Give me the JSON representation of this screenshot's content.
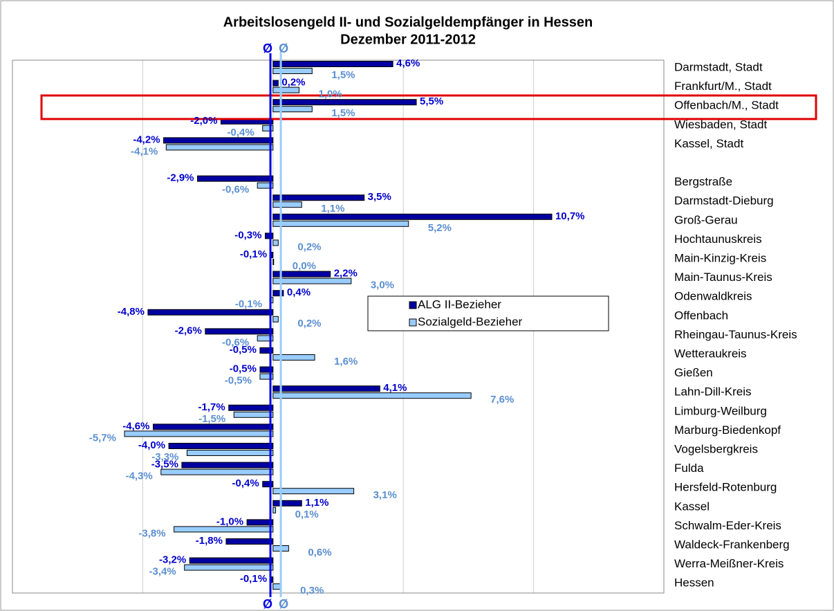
{
  "chart_data": {
    "type": "hbar",
    "title": "Arbeitslosengeld II- und Sozialgeldempfänger in Hessen",
    "subtitle": "Dezember 2011-2012",
    "avg_symbol": "Ø",
    "categories": [
      "Darmstadt, Stadt",
      "Frankfurt/M., Stadt",
      "Offenbach/M., Stadt",
      "Wiesbaden, Stadt",
      "Kassel, Stadt",
      null,
      "Bergstraße",
      "Darmstadt-Dieburg",
      "Groß-Gerau",
      "Hochtaunuskreis",
      "Main-Kinzig-Kreis",
      "Main-Taunus-Kreis",
      "Odenwaldkreis",
      "Offenbach",
      "Rheingau-Taunus-Kreis",
      "Wetteraukreis",
      "Gießen",
      "Lahn-Dill-Kreis",
      "Limburg-Weilburg",
      "Marburg-Biedenkopf",
      "Vogelsbergkreis",
      "Fulda",
      "Hersfeld-Rotenburg",
      "Kassel",
      "Schwalm-Eder-Kreis",
      "Waldeck-Frankenberg",
      "Werra-Meißner-Kreis",
      "Hessen"
    ],
    "series": [
      {
        "name": "ALG II-Bezieher",
        "color": "#0000a0",
        "label_color": "#0000cc",
        "values": [
          4.6,
          0.2,
          5.5,
          -2.0,
          -4.2,
          null,
          -2.9,
          3.5,
          10.7,
          -0.3,
          -0.1,
          2.2,
          0.4,
          -4.8,
          -2.6,
          -0.5,
          -0.5,
          4.1,
          -1.7,
          -4.6,
          -4.0,
          -3.5,
          -0.4,
          1.1,
          -1.0,
          -1.8,
          -3.2,
          -0.1
        ],
        "value_labels": [
          "4,6%",
          "0,2%",
          "5,5%",
          "-2,0%",
          "-4,2%",
          null,
          "-2,9%",
          "3,5%",
          "10,7%",
          "-0,3%",
          "-0,1%",
          "2,2%",
          "0,4%",
          "-4,8%",
          "-2,6%",
          "-0,5%",
          "-0,5%",
          "4,1%",
          "-1,7%",
          "-4,6%",
          "-4,0%",
          "-3,5%",
          "-0,4%",
          "1,1%",
          "-1,0%",
          "-1,8%",
          "-3,2%",
          "-0,1%"
        ]
      },
      {
        "name": "Sozialgeld-Bezieher",
        "color": "#99ccff",
        "label_color": "#5b8fd0",
        "values": [
          1.5,
          1.0,
          1.5,
          -0.4,
          -4.1,
          null,
          -0.6,
          1.1,
          5.2,
          0.2,
          0.0,
          3.0,
          -0.1,
          0.2,
          -0.6,
          1.6,
          -0.5,
          7.6,
          -1.5,
          -5.7,
          -3.3,
          -4.3,
          3.1,
          0.1,
          -3.8,
          0.6,
          -3.4,
          0.3
        ],
        "value_labels": [
          "1,5%",
          "1,0%",
          "1,5%",
          "-0,4%",
          "-4,1%",
          null,
          "-0,6%",
          "1,1%",
          "5,2%",
          "0,2%",
          "0,0%",
          "3,0%",
          "-0,1%",
          "0,2%",
          "-0,6%",
          "1,6%",
          "-0,5%",
          "7,6%",
          "-1,5%",
          "-5,7%",
          "-3,3%",
          "-4,3%",
          "3,1%",
          "0,1%",
          "-3,8%",
          "0,6%",
          "-3,4%",
          "0,3%"
        ]
      }
    ],
    "xlim": [
      -10,
      15
    ],
    "xticks": [
      -10,
      -5,
      0,
      5,
      10,
      15
    ],
    "grid": true
  }
}
